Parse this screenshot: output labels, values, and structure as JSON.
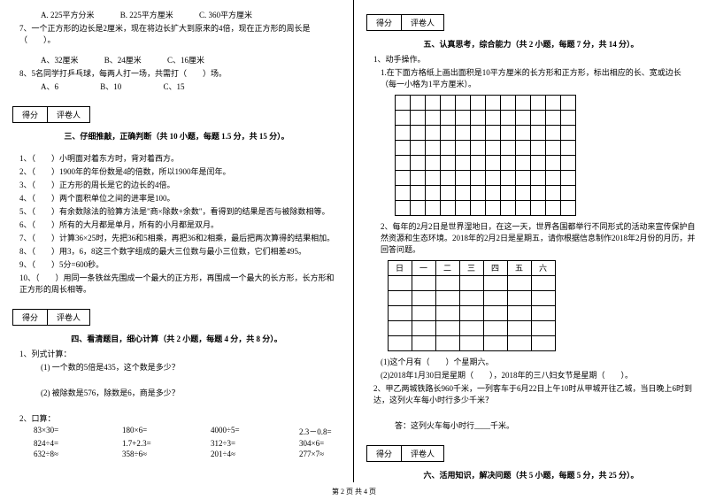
{
  "leftCol": {
    "q6opts": {
      "a": "A. 225平方分米",
      "b": "B. 225平方厘米",
      "c": "C. 360平方厘米"
    },
    "q7": "7、一个正方形的边长是2厘米，现在将边长扩大到原来的4倍，现在正方形的周长是（　　）。",
    "q7opts": {
      "a": "A、32厘米",
      "b": "B、24厘米",
      "c": "C、16厘米"
    },
    "q8": "8、5名同学打乒乓球，每两人打一场，共需打（　　）场。",
    "q8opts": {
      "a": "A、6",
      "b": "B、10",
      "c": "C、15"
    },
    "scoreLabels": {
      "score": "得分",
      "grader": "评卷人"
    },
    "section3": "三、仔细推敲，正确判断（共 10 小题，每题 1.5 分，共 15 分）。",
    "s3q1": "1、（　　）小明面对着东方时，背对着西方。",
    "s3q2": "2、（　　）1900年的年份数是4的倍数，所以1900年是闰年。",
    "s3q3": "3、（　　）正方形的周长是它的边长的4倍。",
    "s3q4": "4、（　　）两个面积单位之间的进率是100。",
    "s3q5": "5、（　　）有余数除法的验算方法是\"商×除数+余数\"，看得到的结果是否与被除数相等。",
    "s3q6": "6、（　　）所有的大月都是单月，所有的小月都是双月。",
    "s3q7": "7、（　　）计算36×25时，先把36和5相乘，再把36和2相乘，最后把两次算得的结果相加。",
    "s3q8": "8、（　　）用3，6，8这三个数字组成的最大三位数与最小三位数，它们相差495。",
    "s3q9": "9、（　　）5分=600秒。",
    "s3q10": "10、（　　）用同一条铁丝先围成一个最大的正方形，再围成一个最大的长方形，长方形和正方形的周长相等。",
    "section4": "四、看清题目，细心计算（共 2 小题，每题 4 分，共 8 分）。",
    "s4q1": "1、列式计算：",
    "s4q1a": "(1) 一个数的5倍是435，这个数是多少？",
    "s4q1b": "(2) 被除数是576，除数是6，商是多少？",
    "s4q2": "2、口算：",
    "calc": [
      [
        "83×30=",
        "180×6=",
        "4000÷5=",
        "2.3－0.8="
      ],
      [
        "824÷4=",
        "1.7+2.3=",
        "312÷3=",
        "304×6="
      ],
      [
        "632÷8≈",
        "358÷6≈",
        "201÷4≈",
        "277×7≈"
      ]
    ]
  },
  "rightCol": {
    "scoreLabels": {
      "score": "得分",
      "grader": "评卷人"
    },
    "section5": "五、认真思考，综合能力（共 2 小题，每题 7 分，共 14 分）。",
    "s5q1": "1、动手操作。",
    "s5q1a": "1.在下面方格纸上画出面积是10平方厘米的长方形和正方形，标出相应的长、宽或边长（每一小格为1平方厘米）。",
    "grid": {
      "rows": 8,
      "cols": 12
    },
    "s5q1b": "2、每年的2月2日是世界湿地日，在这一天，世界各国都举行不同形式的活动来宣传保护自然资源和生态环境。2018年的2月2日是星期五，请你根据信息制作2018年2月份的月历，并回答问题。",
    "weekHeaders": [
      "日",
      "一",
      "二",
      "三",
      "四",
      "五",
      "六"
    ],
    "weekRows": 5,
    "s5q1c1": "(1)这个月有（　　）个星期六。",
    "s5q1c2": "(2)2018年1月30日是星期（　　），2018年的三八妇女节是星期（　　）。",
    "s5q2": "2、甲乙两城铁路长960千米，一列客车于6月22日上午10时从甲城开往乙城，当日晚上6时到达，这列火车每小时行多少千米？",
    "s5q2ans": "答：这列火车每小时行____千米。",
    "section6": "六、活用知识，解决问题（共 5 小题，每题 5 分，共 25 分）。"
  },
  "footer": "第 2 页 共 4 页"
}
